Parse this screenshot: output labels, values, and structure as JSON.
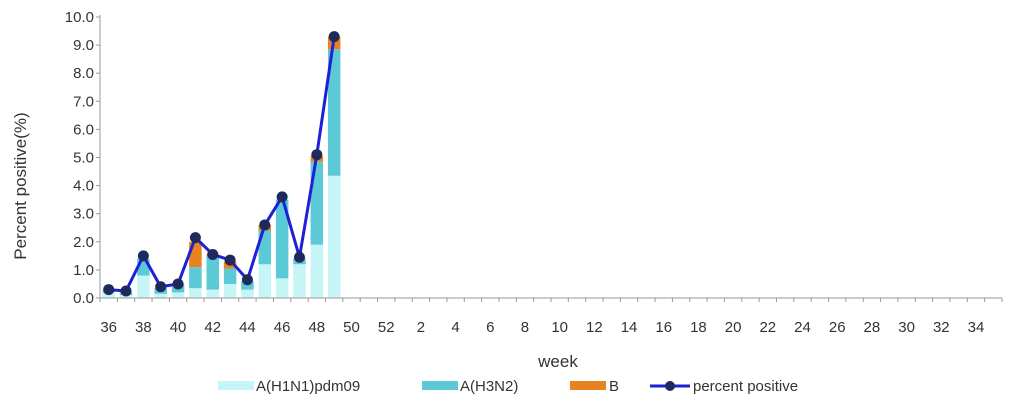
{
  "chart_data": {
    "type": "bar",
    "stacked": true,
    "title": "",
    "xlabel": "week",
    "ylabel": "Percent positive(%)",
    "ylim": [
      0,
      10
    ],
    "yticks": [
      "0.0",
      "1.0",
      "2.0",
      "3.0",
      "4.0",
      "5.0",
      "6.0",
      "7.0",
      "8.0",
      "9.0",
      "10.0"
    ],
    "categories": [
      "36",
      "37",
      "38",
      "39",
      "40",
      "41",
      "42",
      "43",
      "44",
      "45",
      "46",
      "47",
      "48",
      "49",
      "50",
      "51",
      "52",
      "1",
      "2",
      "3",
      "4",
      "5",
      "6",
      "7",
      "8",
      "9",
      "10",
      "11",
      "12",
      "13",
      "14",
      "15",
      "16",
      "17",
      "18",
      "19",
      "20",
      "21",
      "22",
      "23",
      "24",
      "25",
      "26",
      "27",
      "28",
      "29",
      "30",
      "31",
      "32",
      "33",
      "34",
      "35"
    ],
    "xtick_labels": [
      "36",
      "38",
      "40",
      "42",
      "44",
      "46",
      "48",
      "50",
      "52",
      "2",
      "4",
      "6",
      "8",
      "10",
      "12",
      "14",
      "16",
      "18",
      "20",
      "22",
      "24",
      "26",
      "28",
      "30",
      "32",
      "34"
    ],
    "series": [
      {
        "name": "A(H1N1)pdm09",
        "kind": "bar",
        "color": "#c5f5f7",
        "values": [
          0.2,
          0.1,
          0.8,
          0.15,
          0.2,
          0.35,
          0.3,
          0.5,
          0.3,
          1.2,
          0.7,
          1.2,
          1.9,
          4.35,
          null,
          null,
          null,
          null,
          null,
          null,
          null,
          null,
          null,
          null,
          null,
          null,
          null,
          null,
          null,
          null,
          null,
          null,
          null,
          null,
          null,
          null,
          null,
          null,
          null,
          null,
          null,
          null,
          null,
          null,
          null,
          null,
          null,
          null,
          null,
          null,
          null,
          null
        ]
      },
      {
        "name": "A(H3N2)",
        "kind": "bar",
        "color": "#5cc9d6",
        "values": [
          0.05,
          0.1,
          0.6,
          0.2,
          0.3,
          0.75,
          1.2,
          0.55,
          0.3,
          1.2,
          2.8,
          0.2,
          2.95,
          4.5,
          null,
          null,
          null,
          null,
          null,
          null,
          null,
          null,
          null,
          null,
          null,
          null,
          null,
          null,
          null,
          null,
          null,
          null,
          null,
          null,
          null,
          null,
          null,
          null,
          null,
          null,
          null,
          null,
          null,
          null,
          null,
          null,
          null,
          null,
          null,
          null,
          null,
          null
        ]
      },
      {
        "name": "B",
        "kind": "bar",
        "color": "#e8821e",
        "values": [
          0,
          0,
          0,
          0,
          0,
          0.9,
          0.05,
          0.25,
          0,
          0.2,
          0,
          0,
          0.2,
          0.45,
          null,
          null,
          null,
          null,
          null,
          null,
          null,
          null,
          null,
          null,
          null,
          null,
          null,
          null,
          null,
          null,
          null,
          null,
          null,
          null,
          null,
          null,
          null,
          null,
          null,
          null,
          null,
          null,
          null,
          null,
          null,
          null,
          null,
          null,
          null,
          null,
          null,
          null
        ]
      },
      {
        "name": "percent positive",
        "kind": "line",
        "color": "#1f1fd6",
        "marker_color": "#1f2a5c",
        "values": [
          0.3,
          0.25,
          1.5,
          0.4,
          0.5,
          2.15,
          1.55,
          1.35,
          0.65,
          2.6,
          3.6,
          1.45,
          5.1,
          9.3,
          null,
          null,
          null,
          null,
          null,
          null,
          null,
          null,
          null,
          null,
          null,
          null,
          null,
          null,
          null,
          null,
          null,
          null,
          null,
          null,
          null,
          null,
          null,
          null,
          null,
          null,
          null,
          null,
          null,
          null,
          null,
          null,
          null,
          null,
          null,
          null,
          null,
          null
        ]
      }
    ],
    "grid": false,
    "legend_position": "bottom"
  }
}
